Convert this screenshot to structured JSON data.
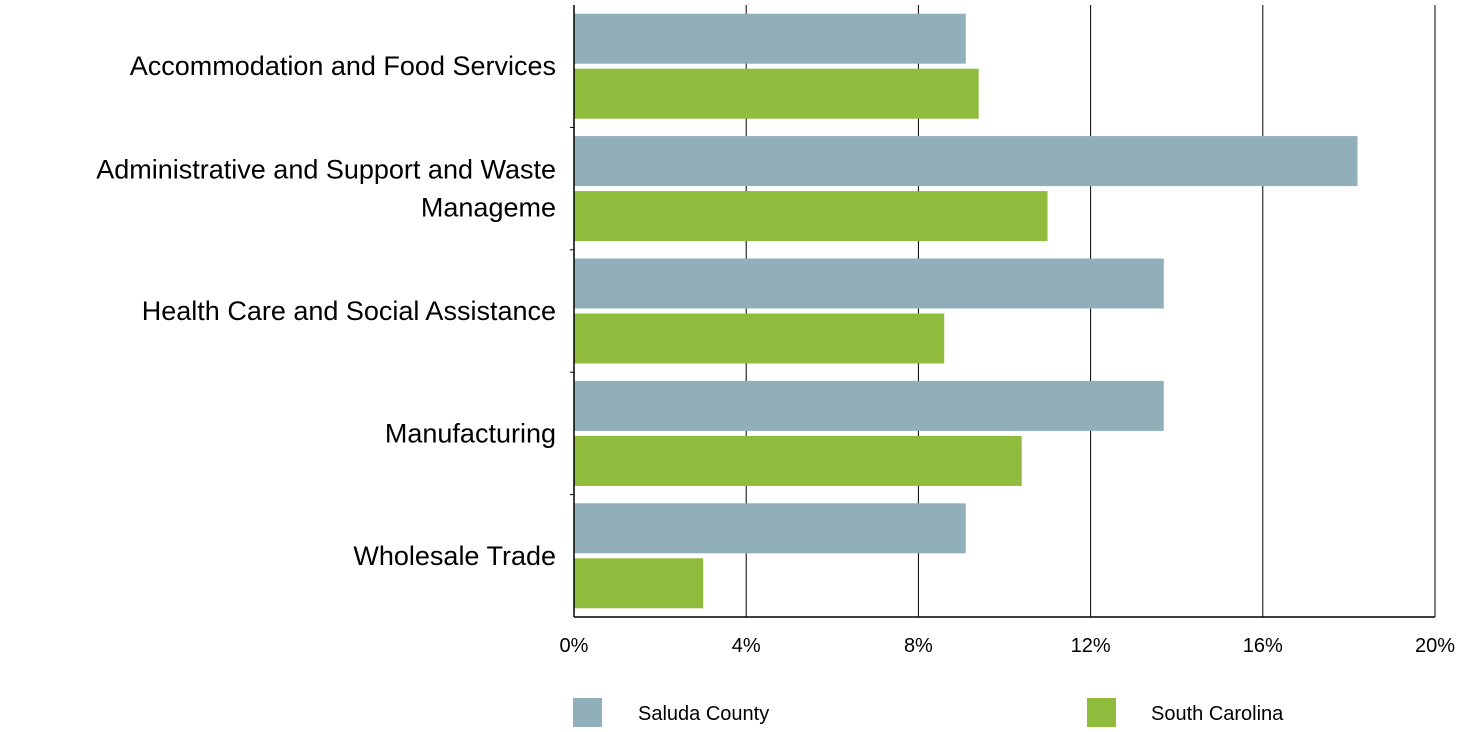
{
  "chart_data": {
    "type": "bar",
    "orientation": "horizontal",
    "categories": [
      [
        "Accommodation and Food Services"
      ],
      [
        "Administrative and Support and Waste",
        "Manageme"
      ],
      [
        "Health Care and Social Assistance"
      ],
      [
        "Manufacturing"
      ],
      [
        "Wholesale Trade"
      ]
    ],
    "series": [
      {
        "name": "Saluda County",
        "color": "#91AFB9",
        "values": [
          9.1,
          18.2,
          13.7,
          13.7,
          9.1
        ]
      },
      {
        "name": "South Carolina",
        "color": "#8FBC3C",
        "values": [
          9.4,
          11.0,
          8.6,
          10.4,
          3.0
        ]
      }
    ],
    "xlim": [
      0,
      20
    ],
    "xticks": [
      0,
      4,
      8,
      12,
      16,
      20
    ],
    "tick_suffix": "%",
    "grid": true,
    "legend_position": "bottom",
    "title": "",
    "xlabel": "",
    "ylabel": ""
  }
}
